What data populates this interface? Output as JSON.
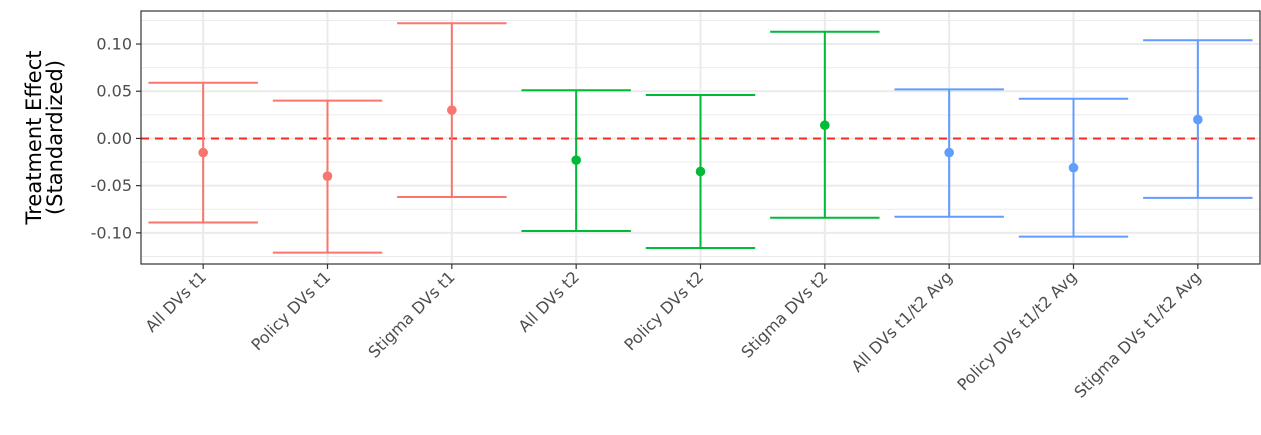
{
  "chart_data": {
    "type": "errorbar",
    "ylabel": "Treatment Effect\n(Standardized)",
    "xlabel": "",
    "ylim": [
      -0.133,
      0.135
    ],
    "y_ticks": [
      -0.1,
      -0.05,
      0.0,
      0.05,
      0.1
    ],
    "y_tick_labels": [
      "-0.10",
      "-0.05",
      "0.00",
      "0.05",
      "0.10"
    ],
    "grid": true,
    "reference_line": {
      "y": 0.0,
      "style": "dashed",
      "color": "#f8291f"
    },
    "categories": [
      "All DVs t1",
      "Policy DVs t1",
      "Stigma DVs t1",
      "All DVs t2",
      "Policy DVs t2",
      "Stigma DVs t2",
      "All DVs t1/t2 Avg",
      "Policy DVs t1/t2 Avg",
      "Stigma DVs t1/t2 Avg"
    ],
    "points": [
      {
        "category": "All DVs t1",
        "estimate": -0.015,
        "low": -0.089,
        "high": 0.059,
        "color": "#f8766d"
      },
      {
        "category": "Policy DVs t1",
        "estimate": -0.04,
        "low": -0.121,
        "high": 0.04,
        "color": "#f8766d"
      },
      {
        "category": "Stigma DVs t1",
        "estimate": 0.03,
        "low": -0.062,
        "high": 0.122,
        "color": "#f8766d"
      },
      {
        "category": "All DVs t2",
        "estimate": -0.023,
        "low": -0.098,
        "high": 0.051,
        "color": "#00ba38"
      },
      {
        "category": "Policy DVs t2",
        "estimate": -0.035,
        "low": -0.116,
        "high": 0.046,
        "color": "#00ba38"
      },
      {
        "category": "Stigma DVs t2",
        "estimate": 0.014,
        "low": -0.084,
        "high": 0.113,
        "color": "#00ba38"
      },
      {
        "category": "All DVs t1/t2 Avg",
        "estimate": -0.015,
        "low": -0.083,
        "high": 0.052,
        "color": "#619cff"
      },
      {
        "category": "Policy DVs t1/t2 Avg",
        "estimate": -0.031,
        "low": -0.104,
        "high": 0.042,
        "color": "#619cff"
      },
      {
        "category": "Stigma DVs t1/t2 Avg",
        "estimate": 0.02,
        "low": -0.063,
        "high": 0.104,
        "color": "#619cff"
      }
    ],
    "colors": {
      "grid": "#ebebeb",
      "panel_border": "#333333",
      "tick": "#333333"
    }
  }
}
